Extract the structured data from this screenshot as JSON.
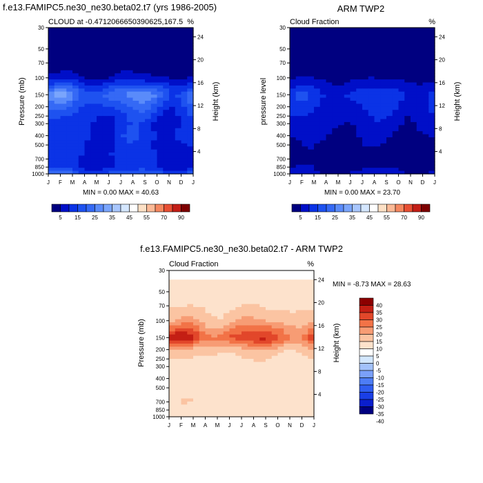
{
  "chart_data": [
    {
      "type": "heatmap",
      "figure_title": "f.e13.FAMIPC5.ne30_ne30.beta02.t7 (yrs 1986-2005)",
      "title": "CLOUD at -0.4712066650390625,167.5",
      "title_right": "%",
      "xlabel": "",
      "ylabel": "Pressure (mb)",
      "ylabel_right": "Height (km)",
      "x_ticks": [
        "J",
        "F",
        "M",
        "A",
        "M",
        "J",
        "J",
        "A",
        "S",
        "O",
        "N",
        "D",
        "J"
      ],
      "y_ticks": [
        "30",
        "50",
        "70",
        "100",
        "150",
        "200",
        "250",
        "300",
        "400",
        "500",
        "700",
        "850",
        "1000"
      ],
      "y_ticks_right": [
        "24",
        "20",
        "16",
        "12",
        "8",
        "4"
      ],
      "stats": "MIN =   0.00 MAX =  40.63",
      "colorbar_labels": [
        "5",
        "15",
        "25",
        "35",
        "45",
        "55",
        "70",
        "90"
      ],
      "levels": [
        5,
        10,
        15,
        20,
        25,
        30,
        35,
        40,
        45,
        50,
        55,
        60,
        70,
        80,
        90
      ],
      "profile_pressure": [
        30,
        50,
        70,
        100,
        150,
        200,
        250,
        300,
        400,
        500,
        700,
        850,
        1000
      ],
      "profile_values": [
        0,
        0,
        1,
        6,
        24,
        17,
        13,
        11,
        12,
        11,
        10,
        10,
        18
      ],
      "unit": "%"
    },
    {
      "type": "heatmap",
      "figure_title": "ARM TWP2",
      "title": "Cloud Fraction",
      "title_right": "%",
      "xlabel": "",
      "ylabel": "pressure level",
      "ylabel_right": "Height (km)",
      "x_ticks": [
        "J",
        "F",
        "M",
        "A",
        "M",
        "J",
        "J",
        "A",
        "S",
        "O",
        "N",
        "D",
        "J"
      ],
      "y_ticks": [
        "30",
        "50",
        "70",
        "100",
        "150",
        "200",
        "250",
        "300",
        "400",
        "500",
        "700",
        "850",
        "1000"
      ],
      "y_ticks_right": [
        "24",
        "20",
        "16",
        "12",
        "8",
        "4"
      ],
      "stats": "MIN =   0.00 MAX =  23.70",
      "colorbar_labels": [
        "5",
        "15",
        "25",
        "35",
        "45",
        "55",
        "70",
        "90"
      ],
      "levels": [
        5,
        10,
        15,
        20,
        25,
        30,
        35,
        40,
        45,
        50,
        55,
        60,
        70,
        80,
        90
      ],
      "profile_pressure": [
        30,
        50,
        70,
        100,
        150,
        200,
        250,
        300,
        400,
        500,
        700,
        850,
        1000
      ],
      "profile_values": [
        0,
        0,
        0,
        4,
        12,
        10,
        8,
        7,
        5,
        4,
        3,
        4,
        6
      ],
      "unit": "%"
    },
    {
      "type": "heatmap",
      "figure_title": "f.e13.FAMIPC5.ne30_ne30.beta02.t7 - ARM TWP2",
      "title": "Cloud Fraction",
      "title_right": "%",
      "xlabel": "",
      "ylabel": "Pressure (mb)",
      "ylabel_right": "Height (km)",
      "x_ticks": [
        "J",
        "F",
        "M",
        "A",
        "M",
        "J",
        "J",
        "A",
        "S",
        "O",
        "N",
        "D",
        "J"
      ],
      "y_ticks": [
        "30",
        "50",
        "70",
        "100",
        "150",
        "200",
        "250",
        "300",
        "400",
        "500",
        "700",
        "850",
        "1000"
      ],
      "y_ticks_right": [
        "24",
        "20",
        "16",
        "12",
        "8",
        "4"
      ],
      "stats": "MIN =  -8.73 MAX =  28.63",
      "colorbar_labels": [
        "40",
        "35",
        "30",
        "25",
        "20",
        "15",
        "10",
        "5",
        "0",
        "-5",
        "-10",
        "-15",
        "-20",
        "-25",
        "-30",
        "-35",
        "-40"
      ],
      "levels": [
        -40,
        -35,
        -30,
        -25,
        -20,
        -15,
        -10,
        -5,
        0,
        5,
        10,
        15,
        20,
        25,
        30,
        35,
        40
      ],
      "profile_pressure": [
        30,
        50,
        70,
        100,
        150,
        200,
        250,
        300,
        400,
        500,
        700,
        850,
        1000
      ],
      "profile_values": [
        -2,
        2,
        4,
        9,
        22,
        8,
        4,
        3,
        2,
        3,
        4,
        2,
        3
      ],
      "unit": "%"
    }
  ],
  "colors": {
    "seq": [
      "#000080",
      "#000fc8",
      "#0b33e6",
      "#1e52f0",
      "#3569f5",
      "#5a8bfa",
      "#7aa5fc",
      "#a8c6fd",
      "#d4e6fe",
      "#ffffff",
      "#fde0c5",
      "#fbb996",
      "#f5875f",
      "#e84f33",
      "#c31e16",
      "#7d0000"
    ],
    "div": [
      "#000080",
      "#0a1ecd",
      "#1a3fe6",
      "#2f5df0",
      "#4d7df6",
      "#7aa0fa",
      "#a3c2fb",
      "#d3e7fe",
      "#ffffff",
      "#fde2cc",
      "#fbc4a2",
      "#f79c74",
      "#f27347",
      "#e2472a",
      "#c41f14",
      "#8c0000"
    ]
  }
}
